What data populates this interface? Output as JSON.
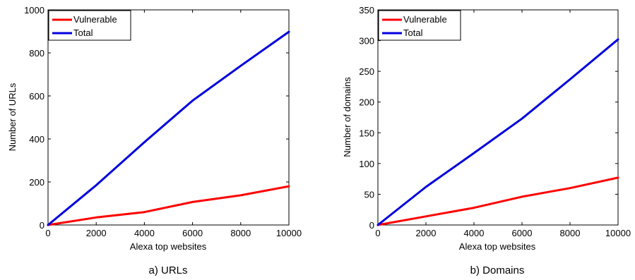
{
  "chart_data": [
    {
      "type": "line",
      "caption": "a) URLs",
      "xlabel": "Alexa top websites",
      "ylabel": "Number of URLs",
      "x": [
        0,
        2000,
        4000,
        6000,
        8000,
        10000
      ],
      "xlim": [
        0,
        10000
      ],
      "ylim": [
        0,
        1000
      ],
      "xticks": [
        0,
        2000,
        4000,
        6000,
        8000,
        10000
      ],
      "yticks": [
        0,
        200,
        400,
        600,
        800,
        1000
      ],
      "legend": "top-left",
      "grid": false,
      "series": [
        {
          "name": "Vulnerable",
          "color": "#ff0000",
          "values": [
            0,
            35,
            60,
            107,
            138,
            180
          ]
        },
        {
          "name": "Total",
          "color": "#0000dd",
          "values": [
            0,
            185,
            385,
            578,
            740,
            898
          ]
        }
      ]
    },
    {
      "type": "line",
      "caption": "b) Domains",
      "xlabel": "Alexa top websites",
      "ylabel": "Number of domains",
      "x": [
        0,
        2000,
        4000,
        6000,
        8000,
        10000
      ],
      "xlim": [
        0,
        10000
      ],
      "ylim": [
        0,
        350
      ],
      "xticks": [
        0,
        2000,
        4000,
        6000,
        8000,
        10000
      ],
      "yticks": [
        0,
        50,
        100,
        150,
        200,
        250,
        300,
        350
      ],
      "legend": "top-left",
      "grid": false,
      "series": [
        {
          "name": "Vulnerable",
          "color": "#ff0000",
          "values": [
            0,
            14,
            28,
            46,
            60,
            77
          ]
        },
        {
          "name": "Total",
          "color": "#0000dd",
          "values": [
            0,
            62,
            117,
            173,
            237,
            302
          ]
        }
      ]
    }
  ]
}
